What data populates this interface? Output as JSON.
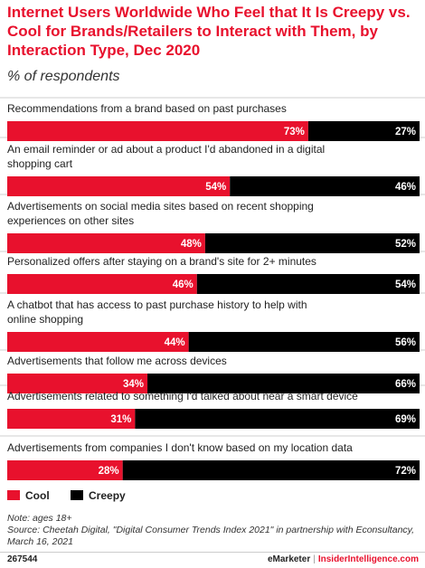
{
  "chart_data": {
    "type": "bar",
    "stacked": true,
    "orientation": "horizontal",
    "title": "Internet Users Worldwide Who Feel that It Is Creepy vs. Cool for Brands/Retailers to Interact with Them, by Interaction Type, Dec 2020",
    "subtitle": "% of respondents",
    "categories": [
      "Recommendations from a brand based on past purchases",
      "An email reminder or ad about a product I'd abandoned in a digital shopping cart",
      "Advertisements on social media sites based on recent shopping experiences on other sites",
      "Personalized offers after staying on a brand's site for 2+ minutes",
      "A chatbot that has access to past purchase history to help with online shopping",
      "Advertisements  that follow me across devices",
      "Advertisements related to something I'd talked about near a smart device",
      "Advertisements from companies I don't know based on my location data"
    ],
    "category_lines": [
      [
        "Recommendations from a brand based on past purchases"
      ],
      [
        "An email reminder or ad about a product I'd abandoned in a digital",
        "shopping cart"
      ],
      [
        "Advertisements on social media sites based on recent shopping",
        "experiences on other sites"
      ],
      [
        "Personalized offers after staying on a brand's site for 2+ minutes"
      ],
      [
        "A chatbot that has access to past purchase history to help with",
        "online shopping"
      ],
      [
        "Advertisements  that follow me across devices"
      ],
      [
        "Advertisements related to something I'd talked about near a smart device"
      ],
      [
        "Advertisements from companies I don't know based on my location data"
      ]
    ],
    "series": [
      {
        "name": "Cool",
        "color": "#e8112d",
        "values": [
          73,
          54,
          48,
          46,
          44,
          34,
          31,
          28
        ]
      },
      {
        "name": "Creepy",
        "color": "#000000",
        "values": [
          27,
          46,
          52,
          54,
          56,
          66,
          69,
          72
        ]
      }
    ],
    "value_suffix": "%",
    "xlim": [
      0,
      100
    ],
    "legend_position": "bottom-left",
    "grid": false
  },
  "notes": {
    "note": "Note: ages 18+",
    "source": "Source: Cheetah Digital, \"Digital Consumer Trends Index 2021\" in partnership with Econsultancy, March 16, 2021"
  },
  "footer": {
    "id": "267544",
    "brand_left": "eMarketer",
    "separator": "|",
    "brand_right": "InsiderIntelligence.com"
  }
}
